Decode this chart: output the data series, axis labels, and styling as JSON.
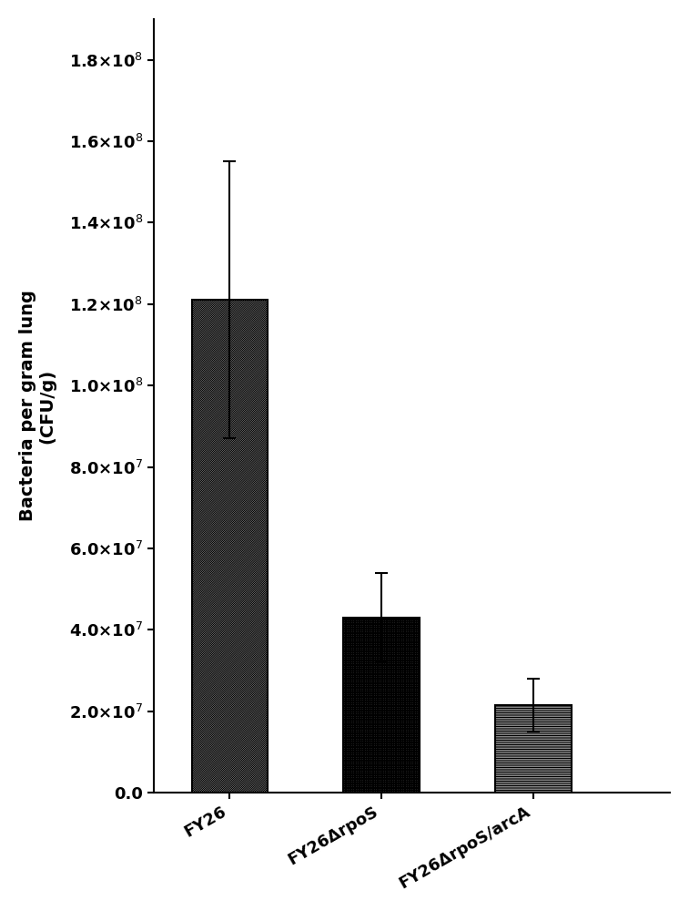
{
  "categories": [
    "FY26",
    "FY26ΔrpoS",
    "FY26ΔrpoS/arcA"
  ],
  "values": [
    121000000.0,
    43000000.0,
    21500000.0
  ],
  "errors": [
    34000000.0,
    11000000.0,
    6500000.0
  ],
  "bar_width": 0.5,
  "bar_positions": [
    1,
    2,
    3
  ],
  "ylim": [
    0,
    190000000.0
  ],
  "yticks": [
    0.0,
    20000000.0,
    40000000.0,
    60000000.0,
    80000000.0,
    100000000.0,
    120000000.0,
    140000000.0,
    160000000.0,
    180000000.0
  ],
  "ylabel": "Bacteria per gram lung\n(CFU/g)",
  "hatch_patterns": [
    "//////////",
    "++++++",
    "----------"
  ],
  "bar_facecolor": [
    "#aaaaaa",
    "#ffffff",
    "#f0f0f0"
  ],
  "bar_edgecolor": [
    "#000000",
    "#000000",
    "#000000"
  ],
  "error_color": "#000000",
  "capsize": 5,
  "tick_fontsize": 13,
  "label_fontsize": 14,
  "xlabel_rotation": 30,
  "background_color": "#ffffff",
  "xlim": [
    0.5,
    3.9
  ]
}
